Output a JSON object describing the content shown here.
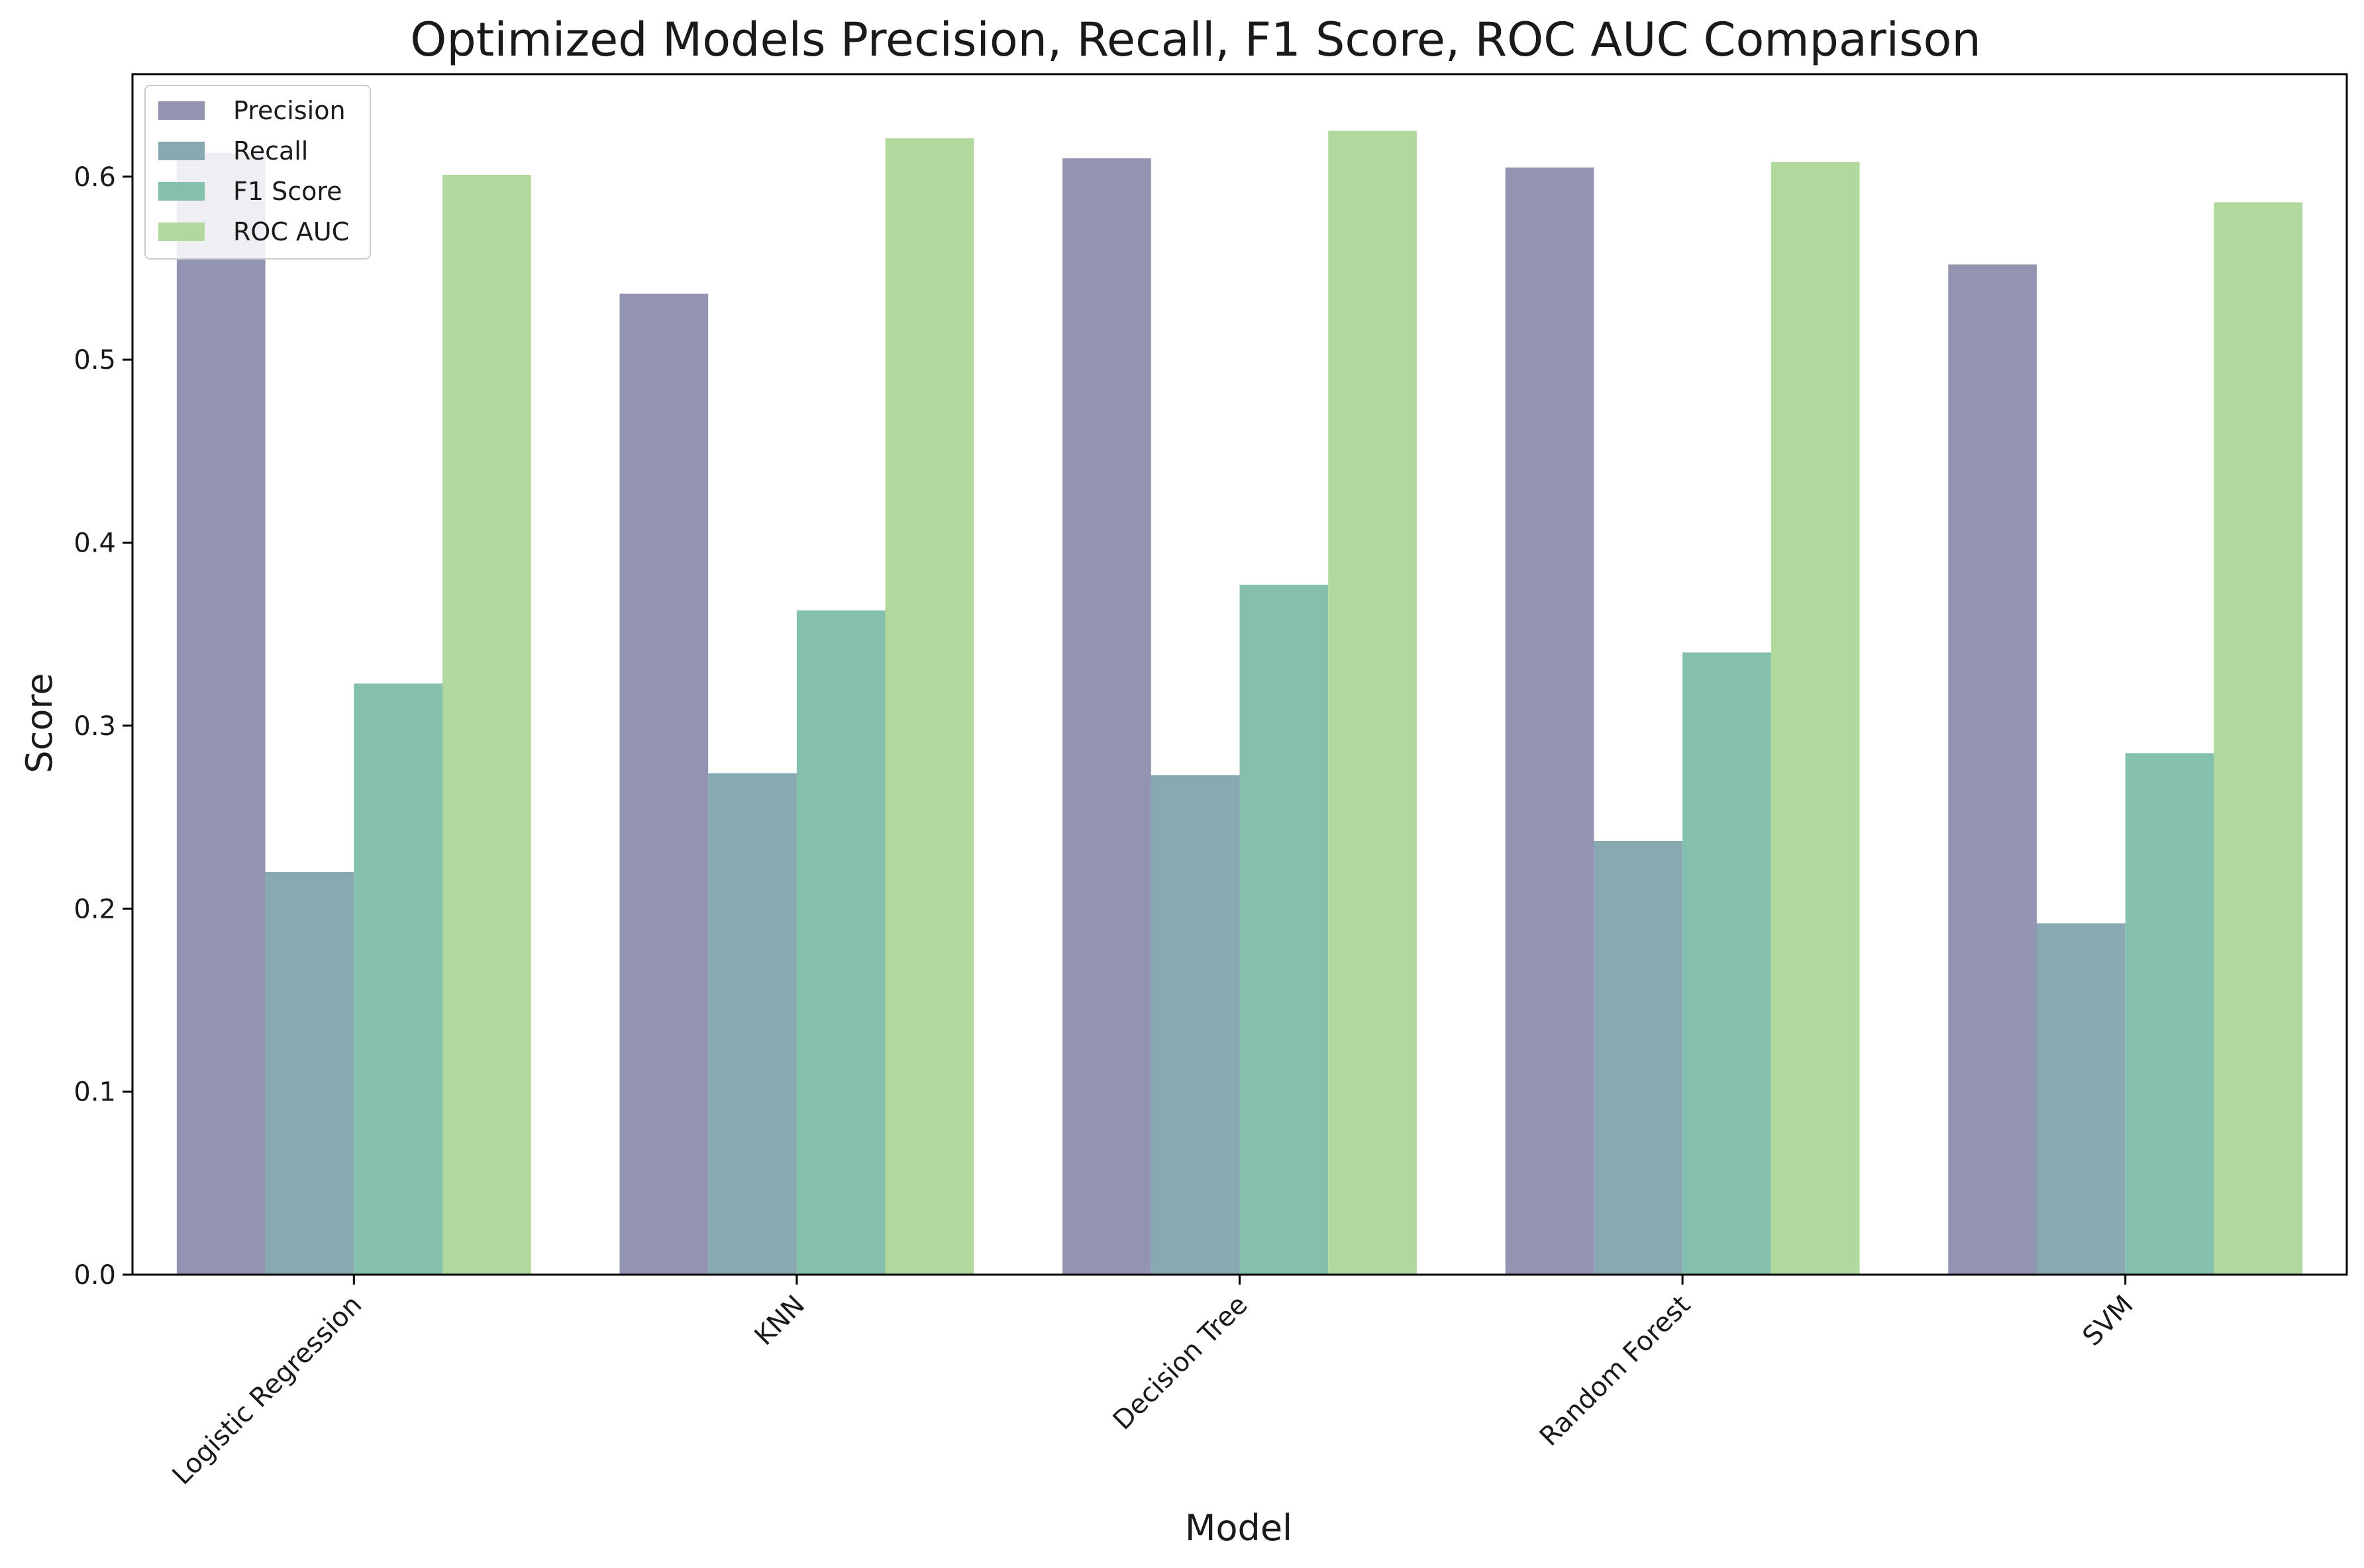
{
  "chart_data": {
    "type": "bar",
    "title": "Optimized Models Precision, Recall, F1 Score, ROC AUC Comparison",
    "xlabel": "Model",
    "ylabel": "Score",
    "categories": [
      "Logistic Regression",
      "KNN",
      "Decision Tree",
      "Random Forest",
      "SVM"
    ],
    "series": [
      {
        "name": "Precision",
        "color": "#9294b1",
        "values": [
          0.613,
          0.536,
          0.61,
          0.605,
          0.552
        ]
      },
      {
        "name": "Recall",
        "color": "#88a8b2",
        "values": [
          0.22,
          0.274,
          0.273,
          0.237,
          0.192
        ]
      },
      {
        "name": "F1 Score",
        "color": "#85c0ae",
        "values": [
          0.323,
          0.363,
          0.377,
          0.34,
          0.285
        ]
      },
      {
        "name": "ROC AUC",
        "color": "#b2d99d",
        "values": [
          0.601,
          0.621,
          0.625,
          0.608,
          0.586
        ]
      }
    ],
    "ylim": [
      0,
      0.656
    ],
    "yticks": [
      "0.0",
      "0.1",
      "0.2",
      "0.3",
      "0.4",
      "0.5",
      "0.6"
    ],
    "grid": false,
    "legend_position": "top-left",
    "xtick_rotation": "45 degrees"
  }
}
